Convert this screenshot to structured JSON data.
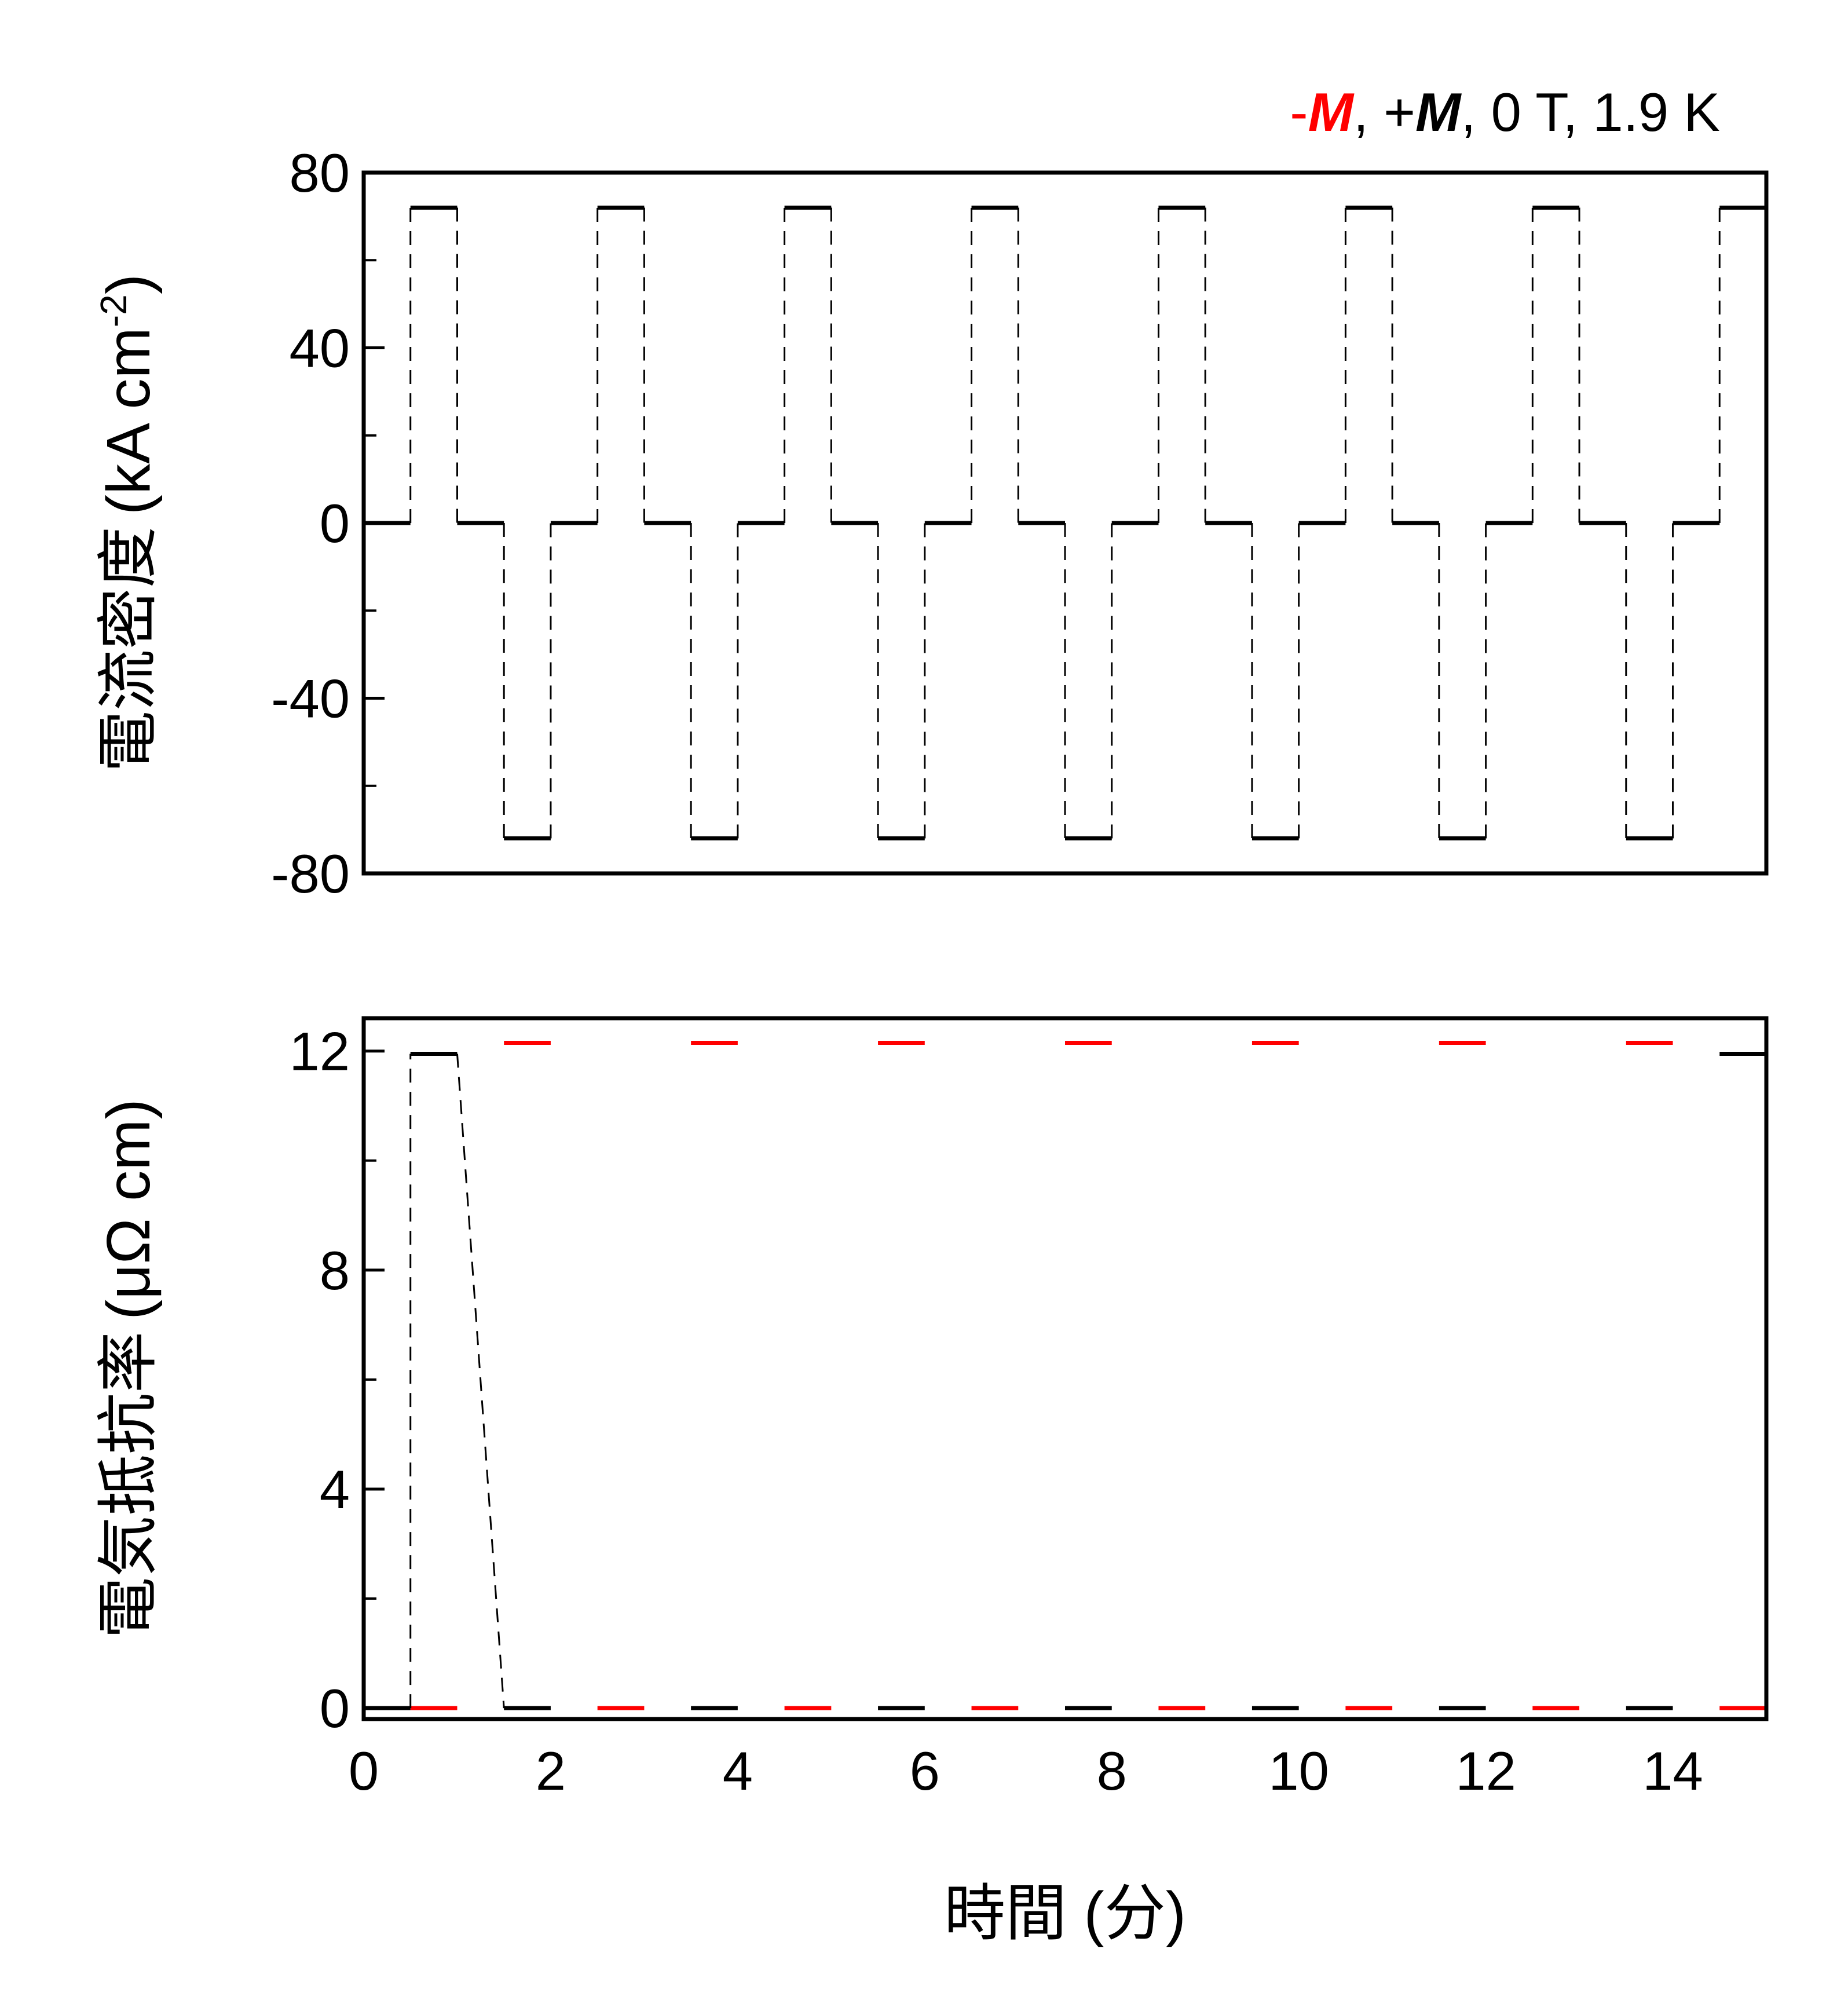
{
  "chart_data": [
    {
      "type": "line",
      "id": "current-density",
      "ylabel": "電流密度 (kA cm-2)",
      "ylabel_main": "電流密度",
      "ylabel_unit": "(kA cm",
      "ylabel_exp": "-2",
      "ylabel_close": ")",
      "ylim": [
        -80,
        80
      ],
      "yticks": [
        -80,
        -40,
        0,
        40,
        80
      ],
      "xlim": [
        0,
        15
      ],
      "grid": false,
      "series": [
        {
          "color": "#000000",
          "style": "dashed",
          "x": [
            0,
            0.5,
            0.5,
            1,
            1,
            1.5,
            1.5,
            2,
            2,
            2.5,
            2.5,
            3,
            3,
            3.5,
            3.5,
            4,
            4,
            4.5,
            4.5,
            5,
            5,
            5.5,
            5.5,
            6,
            6,
            6.5,
            6.5,
            7,
            7,
            7.5,
            7.5,
            8,
            8,
            8.5,
            8.5,
            9,
            9,
            9.5,
            9.5,
            10,
            10,
            10.5,
            10.5,
            11,
            11,
            11.5,
            11.5,
            12,
            12,
            12.5,
            12.5,
            13,
            13,
            13.5,
            13.5,
            14,
            14,
            14.5,
            14.5,
            15
          ],
          "y": [
            0,
            0,
            72,
            72,
            0,
            0,
            -72,
            -72,
            0,
            0,
            72,
            72,
            0,
            0,
            -72,
            -72,
            0,
            0,
            72,
            72,
            0,
            0,
            -72,
            -72,
            0,
            0,
            72,
            72,
            0,
            0,
            -72,
            -72,
            0,
            0,
            72,
            72,
            0,
            0,
            -72,
            -72,
            0,
            0,
            72,
            72,
            0,
            0,
            -72,
            -72,
            0,
            0,
            72,
            72,
            0,
            0,
            -72,
            -72,
            0,
            0,
            72,
            72
          ]
        }
      ]
    },
    {
      "type": "line",
      "id": "resistivity",
      "ylabel": "電気抵抗率 (μΩ cm)",
      "ylabel_main": "電気抵抗率",
      "ylabel_unit": "(μΩ cm)",
      "ylim": [
        -0.2,
        12.6
      ],
      "yticks": [
        0,
        4,
        8,
        12
      ],
      "xlabel": "時間 (分)",
      "xlim": [
        0,
        15
      ],
      "xticks": [
        0,
        2,
        4,
        6,
        8,
        10,
        12,
        14
      ],
      "grid": false,
      "annotation": {
        "parts": [
          {
            "text": "-",
            "color": "#ff0000",
            "italic": false,
            "bold": false
          },
          {
            "text": "M",
            "color": "#ff0000",
            "italic": true,
            "bold": true
          },
          {
            "text": ", +",
            "color": "#000000",
            "italic": false,
            "bold": false
          },
          {
            "text": "M",
            "color": "#000000",
            "italic": true,
            "bold": true
          },
          {
            "text": ", 0 T, 1.9 K",
            "color": "#000000",
            "italic": false,
            "bold": false
          }
        ]
      },
      "series": [
        {
          "name": "-M",
          "color": "#ff0000",
          "style": "dashed",
          "x": [
            0.5,
            1,
            1,
            1.5,
            1.5,
            2,
            2,
            2.5,
            2.5,
            3,
            3,
            3.5,
            3.5,
            4,
            4,
            4.5,
            4.5,
            5,
            5,
            5.5,
            5.5,
            6,
            6,
            6.5,
            6.5,
            7,
            7,
            7.5,
            7.5,
            8,
            8,
            8.5,
            8.5,
            9,
            9,
            9.5,
            9.5,
            10,
            10,
            10.5,
            10.5,
            11,
            11,
            11.5,
            11.5,
            12,
            12,
            12.5,
            12.5,
            13,
            13,
            13.5,
            13.5,
            14,
            14,
            14.5,
            14.5,
            15
          ],
          "y": [
            0,
            0,
            null,
            null,
            12.15,
            12.15,
            null,
            null,
            0,
            0,
            null,
            null,
            12.15,
            12.15,
            null,
            null,
            0,
            0,
            null,
            null,
            12.15,
            12.15,
            null,
            null,
            0,
            0,
            null,
            null,
            12.15,
            12.15,
            null,
            null,
            0,
            0,
            null,
            null,
            12.15,
            12.15,
            null,
            null,
            0,
            0,
            null,
            null,
            12.15,
            12.15,
            null,
            null,
            0,
            0,
            null,
            null,
            12.15,
            12.15,
            null,
            null,
            0,
            0
          ]
        },
        {
          "name": "+M",
          "color": "#000000",
          "style": "dashed",
          "x": [
            0,
            0.5,
            0.5,
            1,
            1.5,
            2,
            2,
            2.5,
            2.5,
            3,
            3.5,
            4,
            4,
            4.5,
            4.5,
            5,
            5.5,
            6,
            6,
            6.5,
            6.5,
            7,
            7.5,
            8,
            8,
            8.5,
            8.5,
            9,
            9.5,
            10,
            10,
            10.5,
            10.5,
            11,
            11.5,
            12,
            12,
            12.5,
            12.5,
            13,
            13.5,
            14,
            14,
            14.5,
            14.5,
            15
          ],
          "y": [
            0,
            0,
            11.95,
            11.95,
            0,
            0,
            null,
            11.95,
            11.95,
            null,
            0,
            0,
            null,
            11.95,
            11.95,
            null,
            0,
            0,
            null,
            11.95,
            11.95,
            null,
            0,
            0,
            null,
            11.95,
            11.95,
            null,
            0,
            0,
            null,
            11.95,
            11.95,
            null,
            0,
            0,
            null,
            11.95,
            11.95,
            null,
            0,
            0,
            null,
            11.95,
            11.95,
            11.95
          ]
        }
      ]
    }
  ]
}
